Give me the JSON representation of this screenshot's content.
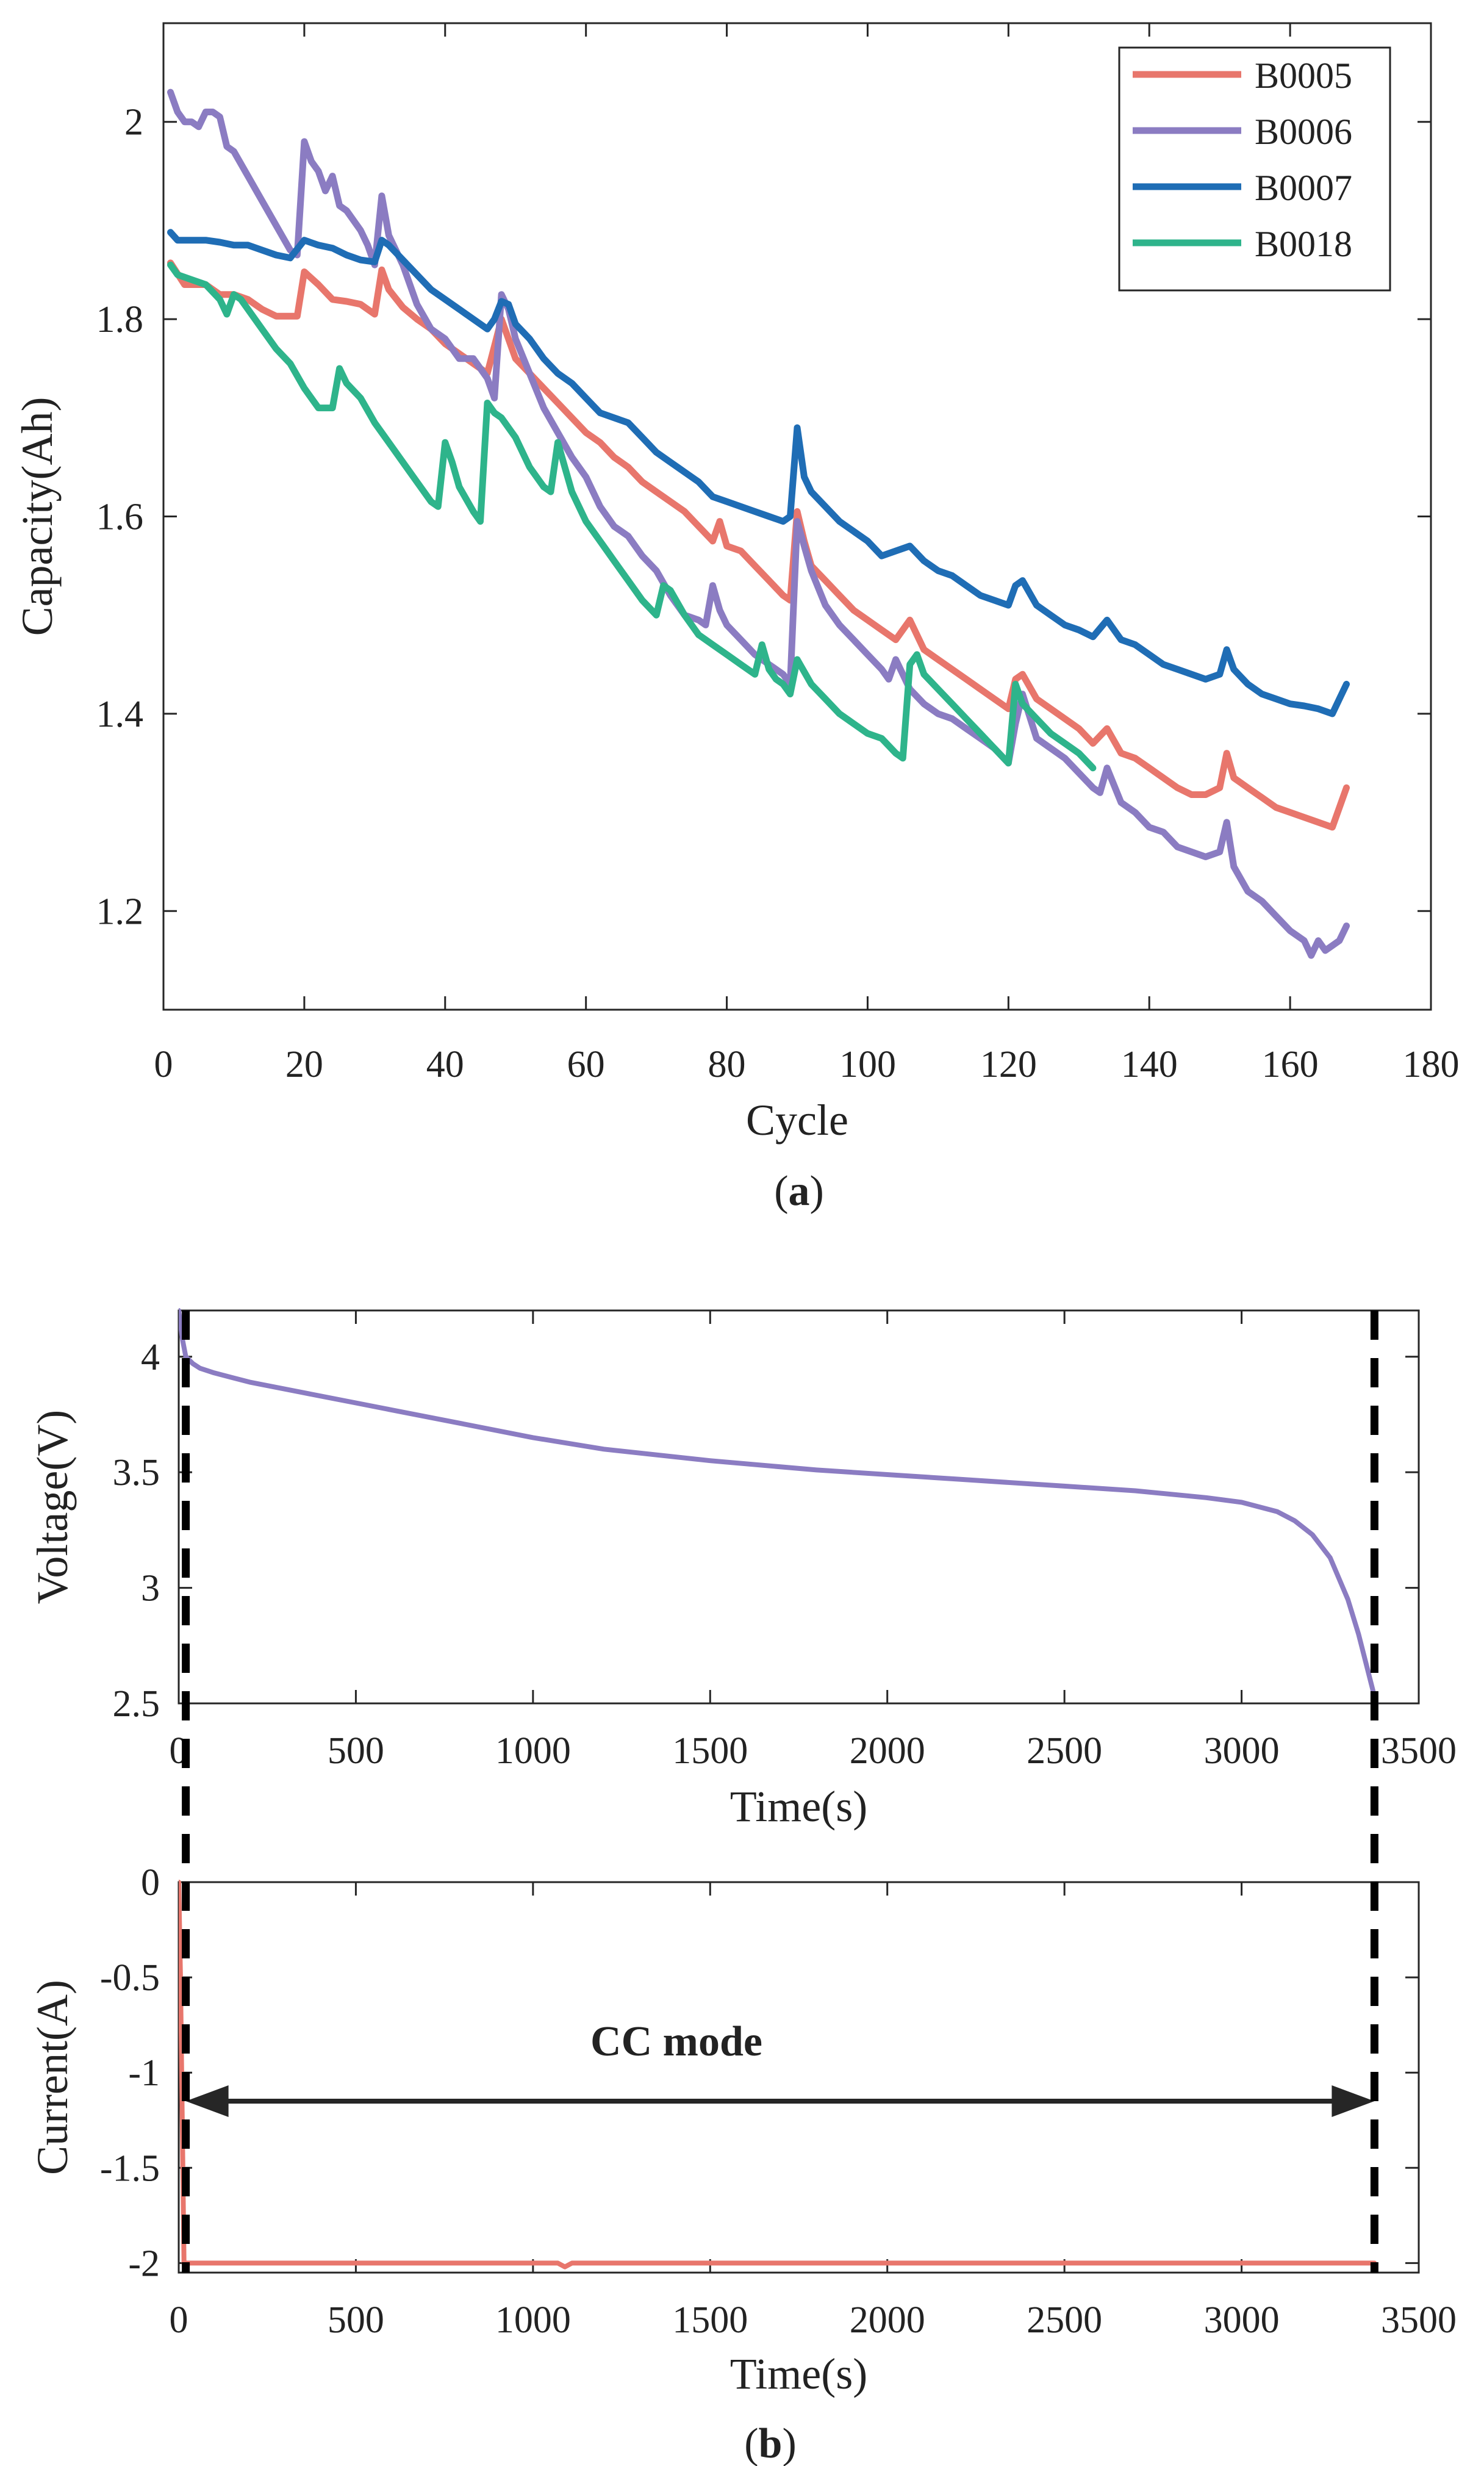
{
  "chart_data": [
    {
      "panel_label": "a",
      "type": "line",
      "title": "",
      "xlabel": "Cycle",
      "ylabel": "Capacity(Ah)",
      "xlim": [
        0,
        180
      ],
      "ylim": [
        1.1,
        2.1
      ],
      "xticks": [
        0,
        20,
        40,
        60,
        80,
        100,
        120,
        140,
        160,
        180
      ],
      "yticks": [
        1.2,
        1.4,
        1.6,
        1.8,
        2
      ],
      "legend_position": "top-right",
      "series": [
        {
          "name": "B0005",
          "color": "#e8766c",
          "x": [
            1,
            3,
            6,
            8,
            10,
            12,
            14,
            16,
            18,
            19,
            20,
            22,
            24,
            26,
            28,
            30,
            31,
            32,
            34,
            36,
            38,
            40,
            42,
            44,
            46,
            48,
            50,
            52,
            54,
            56,
            58,
            60,
            62,
            64,
            66,
            68,
            70,
            72,
            74,
            76,
            78,
            79,
            80,
            82,
            84,
            86,
            88,
            89,
            90,
            91,
            92,
            94,
            96,
            98,
            100,
            102,
            104,
            106,
            108,
            110,
            112,
            114,
            116,
            118,
            120,
            121,
            122,
            124,
            126,
            128,
            130,
            132,
            134,
            136,
            138,
            140,
            142,
            144,
            146,
            148,
            150,
            151,
            152,
            154,
            156,
            158,
            160,
            162,
            164,
            166,
            168
          ],
          "y": [
            1.857,
            1.835,
            1.835,
            1.825,
            1.825,
            1.82,
            1.81,
            1.803,
            1.803,
            1.803,
            1.848,
            1.835,
            1.82,
            1.818,
            1.815,
            1.805,
            1.85,
            1.83,
            1.812,
            1.8,
            1.79,
            1.775,
            1.765,
            1.755,
            1.745,
            1.8,
            1.76,
            1.745,
            1.73,
            1.715,
            1.7,
            1.685,
            1.675,
            1.66,
            1.65,
            1.635,
            1.625,
            1.615,
            1.605,
            1.59,
            1.575,
            1.595,
            1.57,
            1.565,
            1.55,
            1.535,
            1.52,
            1.515,
            1.605,
            1.575,
            1.55,
            1.535,
            1.52,
            1.505,
            1.495,
            1.485,
            1.475,
            1.495,
            1.465,
            1.455,
            1.445,
            1.435,
            1.425,
            1.415,
            1.405,
            1.435,
            1.44,
            1.415,
            1.405,
            1.395,
            1.385,
            1.37,
            1.385,
            1.36,
            1.355,
            1.345,
            1.335,
            1.325,
            1.318,
            1.318,
            1.325,
            1.36,
            1.335,
            1.325,
            1.315,
            1.305,
            1.3,
            1.295,
            1.29,
            1.285,
            1.325
          ]
        },
        {
          "name": "B0006",
          "color": "#8b7cc2",
          "x": [
            1,
            2,
            3,
            4,
            5,
            6,
            7,
            8,
            9,
            10,
            12,
            14,
            16,
            18,
            19,
            20,
            21,
            22,
            23,
            24,
            25,
            26,
            28,
            29,
            30,
            31,
            32,
            34,
            36,
            38,
            40,
            42,
            44,
            46,
            47,
            48,
            49,
            50,
            52,
            54,
            56,
            58,
            60,
            62,
            64,
            66,
            68,
            70,
            72,
            74,
            76,
            77,
            78,
            79,
            80,
            82,
            84,
            86,
            88,
            89,
            90,
            91,
            92,
            94,
            96,
            98,
            100,
            102,
            103,
            104,
            105,
            106,
            108,
            110,
            112,
            114,
            116,
            118,
            120,
            121,
            122,
            124,
            126,
            128,
            130,
            132,
            133,
            134,
            136,
            138,
            140,
            142,
            144,
            146,
            148,
            150,
            151,
            152,
            154,
            156,
            158,
            160,
            162,
            163,
            164,
            165,
            166,
            167,
            168
          ],
          "y": [
            2.03,
            2.01,
            2.0,
            2.0,
            1.995,
            2.01,
            2.01,
            2.005,
            1.975,
            1.97,
            1.945,
            1.92,
            1.895,
            1.87,
            1.865,
            1.98,
            1.96,
            1.95,
            1.93,
            1.945,
            1.915,
            1.91,
            1.89,
            1.875,
            1.855,
            1.925,
            1.885,
            1.855,
            1.815,
            1.79,
            1.78,
            1.76,
            1.76,
            1.74,
            1.72,
            1.825,
            1.81,
            1.78,
            1.745,
            1.71,
            1.685,
            1.66,
            1.64,
            1.61,
            1.59,
            1.58,
            1.56,
            1.545,
            1.52,
            1.5,
            1.495,
            1.49,
            1.53,
            1.505,
            1.49,
            1.475,
            1.46,
            1.45,
            1.44,
            1.43,
            1.595,
            1.57,
            1.545,
            1.51,
            1.49,
            1.475,
            1.46,
            1.445,
            1.435,
            1.455,
            1.44,
            1.425,
            1.41,
            1.4,
            1.395,
            1.385,
            1.375,
            1.365,
            1.35,
            1.39,
            1.42,
            1.375,
            1.365,
            1.355,
            1.34,
            1.325,
            1.32,
            1.345,
            1.31,
            1.3,
            1.285,
            1.28,
            1.265,
            1.26,
            1.255,
            1.26,
            1.29,
            1.245,
            1.22,
            1.21,
            1.195,
            1.18,
            1.17,
            1.155,
            1.17,
            1.16,
            1.165,
            1.17,
            1.185
          ]
        },
        {
          "name": "B0007",
          "color": "#1f6db5",
          "x": [
            1,
            2,
            4,
            6,
            8,
            10,
            12,
            14,
            16,
            18,
            20,
            22,
            24,
            26,
            28,
            30,
            31,
            32,
            34,
            36,
            38,
            40,
            42,
            44,
            46,
            47,
            48,
            49,
            50,
            52,
            54,
            56,
            58,
            60,
            62,
            64,
            66,
            68,
            70,
            72,
            74,
            76,
            78,
            80,
            82,
            84,
            86,
            88,
            89,
            90,
            91,
            92,
            94,
            96,
            98,
            100,
            102,
            104,
            106,
            108,
            110,
            112,
            114,
            116,
            118,
            120,
            121,
            122,
            124,
            126,
            128,
            130,
            132,
            134,
            136,
            138,
            140,
            142,
            144,
            146,
            148,
            150,
            151,
            152,
            154,
            156,
            158,
            160,
            162,
            164,
            166,
            167,
            168
          ],
          "y": [
            1.888,
            1.88,
            1.88,
            1.88,
            1.878,
            1.875,
            1.875,
            1.87,
            1.865,
            1.862,
            1.88,
            1.875,
            1.872,
            1.865,
            1.86,
            1.858,
            1.88,
            1.875,
            1.86,
            1.845,
            1.83,
            1.82,
            1.81,
            1.8,
            1.79,
            1.8,
            1.818,
            1.815,
            1.795,
            1.78,
            1.76,
            1.745,
            1.735,
            1.72,
            1.705,
            1.7,
            1.695,
            1.68,
            1.665,
            1.655,
            1.645,
            1.635,
            1.62,
            1.615,
            1.61,
            1.605,
            1.6,
            1.595,
            1.6,
            1.69,
            1.64,
            1.625,
            1.61,
            1.595,
            1.585,
            1.575,
            1.56,
            1.565,
            1.57,
            1.555,
            1.545,
            1.54,
            1.53,
            1.52,
            1.515,
            1.51,
            1.53,
            1.535,
            1.51,
            1.5,
            1.49,
            1.485,
            1.478,
            1.495,
            1.475,
            1.47,
            1.46,
            1.45,
            1.445,
            1.44,
            1.435,
            1.44,
            1.465,
            1.445,
            1.43,
            1.42,
            1.415,
            1.41,
            1.408,
            1.405,
            1.4,
            1.415,
            1.43
          ]
        },
        {
          "name": "B0018",
          "color": "#2eb48b",
          "x": [
            1,
            2,
            4,
            6,
            8,
            9,
            10,
            11,
            12,
            14,
            16,
            18,
            20,
            22,
            24,
            25,
            26,
            28,
            30,
            32,
            34,
            36,
            38,
            39,
            40,
            41,
            42,
            44,
            45,
            46,
            47,
            48,
            50,
            52,
            54,
            55,
            56,
            57,
            58,
            60,
            62,
            64,
            66,
            68,
            70,
            71,
            72,
            74,
            76,
            78,
            80,
            82,
            84,
            85,
            86,
            87,
            88,
            89,
            90,
            92,
            94,
            96,
            98,
            100,
            102,
            104,
            105,
            106,
            107,
            108,
            110,
            112,
            114,
            116,
            118,
            120,
            121,
            122,
            124,
            126,
            128,
            130,
            132
          ],
          "y": [
            1.855,
            1.845,
            1.84,
            1.835,
            1.82,
            1.805,
            1.825,
            1.82,
            1.81,
            1.79,
            1.77,
            1.755,
            1.73,
            1.71,
            1.71,
            1.75,
            1.735,
            1.72,
            1.695,
            1.675,
            1.655,
            1.635,
            1.615,
            1.61,
            1.675,
            1.655,
            1.63,
            1.605,
            1.595,
            1.715,
            1.705,
            1.7,
            1.68,
            1.65,
            1.63,
            1.625,
            1.675,
            1.65,
            1.625,
            1.595,
            1.575,
            1.555,
            1.535,
            1.515,
            1.5,
            1.53,
            1.525,
            1.5,
            1.48,
            1.47,
            1.46,
            1.45,
            1.44,
            1.47,
            1.445,
            1.435,
            1.43,
            1.42,
            1.455,
            1.43,
            1.415,
            1.4,
            1.39,
            1.38,
            1.375,
            1.36,
            1.355,
            1.45,
            1.46,
            1.44,
            1.425,
            1.41,
            1.395,
            1.38,
            1.365,
            1.35,
            1.43,
            1.41,
            1.395,
            1.38,
            1.37,
            1.36,
            1.345
          ]
        }
      ]
    },
    {
      "panel_label": "b",
      "type": "line",
      "title": "",
      "xlabel": "Time(s)",
      "ylabel": "Voltage(V)",
      "xlim": [
        0,
        3500
      ],
      "ylim": [
        2.5,
        4.2
      ],
      "xticks": [
        0,
        500,
        1000,
        1500,
        2000,
        2500,
        3000,
        3500
      ],
      "yticks": [
        2.5,
        3,
        3.5,
        4
      ],
      "series": [
        {
          "name": "Voltage",
          "color": "#8b7cc2",
          "x": [
            0,
            10,
            20,
            40,
            60,
            100,
            150,
            200,
            300,
            400,
            500,
            600,
            800,
            1000,
            1200,
            1500,
            1800,
            2000,
            2200,
            2500,
            2700,
            2900,
            3000,
            3100,
            3150,
            3200,
            3250,
            3300,
            3330,
            3360,
            3380
          ],
          "y": [
            4.2,
            4.08,
            4.0,
            3.97,
            3.95,
            3.93,
            3.91,
            3.89,
            3.86,
            3.83,
            3.8,
            3.77,
            3.71,
            3.65,
            3.6,
            3.55,
            3.51,
            3.49,
            3.47,
            3.44,
            3.42,
            3.39,
            3.37,
            3.33,
            3.29,
            3.23,
            3.13,
            2.95,
            2.8,
            2.62,
            2.5
          ]
        }
      ]
    },
    {
      "panel_label": "b",
      "type": "line",
      "title": "",
      "xlabel": "Time(s)",
      "ylabel": "Current(A)",
      "xlim": [
        0,
        3500
      ],
      "ylim": [
        -2.05,
        0
      ],
      "xticks": [
        0,
        500,
        1000,
        1500,
        2000,
        2500,
        3000,
        3500
      ],
      "yticks": [
        -2,
        -1.5,
        -1,
        -0.5,
        0
      ],
      "annotation": {
        "text": "CC mode",
        "x_start": 20,
        "x_end": 3375,
        "y": -1.15
      },
      "series": [
        {
          "name": "Current",
          "color": "#e8766c",
          "x": [
            0,
            5,
            15,
            20,
            300,
            600,
            1000,
            1070,
            1090,
            1110,
            1500,
            2000,
            2500,
            3000,
            3375
          ],
          "y": [
            0,
            -0.5,
            -2.0,
            -2.0,
            -2.0,
            -2.0,
            -2.0,
            -2.0,
            -2.02,
            -2.0,
            -2.0,
            -2.0,
            -2.0,
            -2.0,
            -2.0
          ]
        }
      ]
    }
  ]
}
